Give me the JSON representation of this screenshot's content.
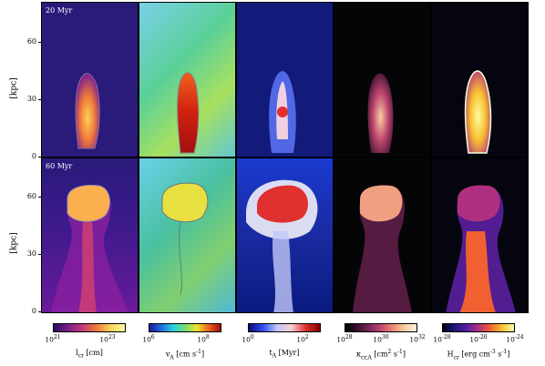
{
  "rows": [
    {
      "label": "20 Myr"
    },
    {
      "label": "60 Myr"
    }
  ],
  "y_axis": {
    "label": "[kpc]",
    "ticks": [
      "60",
      "30",
      "0"
    ]
  },
  "colorbars": [
    {
      "label": "l_cr [cm]",
      "ticks": [
        "10^21",
        "10^23"
      ],
      "colors": [
        "#2a0a5e",
        "#7a1f8f",
        "#c23a78",
        "#f07a3a",
        "#fbd35a",
        "#fcfca0"
      ]
    },
    {
      "label": "v_A [cm s^-1]",
      "ticks": [
        "10^6",
        "10^8"
      ],
      "colors": [
        "#1a1aa0",
        "#1a6fe0",
        "#2ad0e0",
        "#6fe070",
        "#f0e030",
        "#f06020",
        "#a01010"
      ]
    },
    {
      "label": "t_A [Myr]",
      "ticks": [
        "10^0",
        "10^2"
      ],
      "colors": [
        "#0a0a80",
        "#3050f0",
        "#c0c8f8",
        "#f8d0d0",
        "#e03030",
        "#800000"
      ]
    },
    {
      "label": "κ_cr,A [cm^2 s^-1]",
      "ticks": [
        "10^28",
        "10^30",
        "10^32"
      ],
      "colors": [
        "#000000",
        "#3a1030",
        "#7a2858",
        "#c04870",
        "#f08870",
        "#f8d0a0",
        "#fcf0d8"
      ]
    },
    {
      "label": "H_cr [erg cm^-3 s^-1]",
      "ticks": [
        "10^-28",
        "10^-26",
        "10^-24"
      ],
      "colors": [
        "#000010",
        "#1a1a80",
        "#5a20a0",
        "#b03080",
        "#f06030",
        "#f8c030",
        "#fcfca0"
      ]
    }
  ],
  "panel_colors": {
    "lcr_bg": "#2a1a7a",
    "vA_bg": "#6fd0a0",
    "tA_bg": "#121a7a",
    "kappa_bg": "#050508",
    "H_bg": "#050510"
  }
}
